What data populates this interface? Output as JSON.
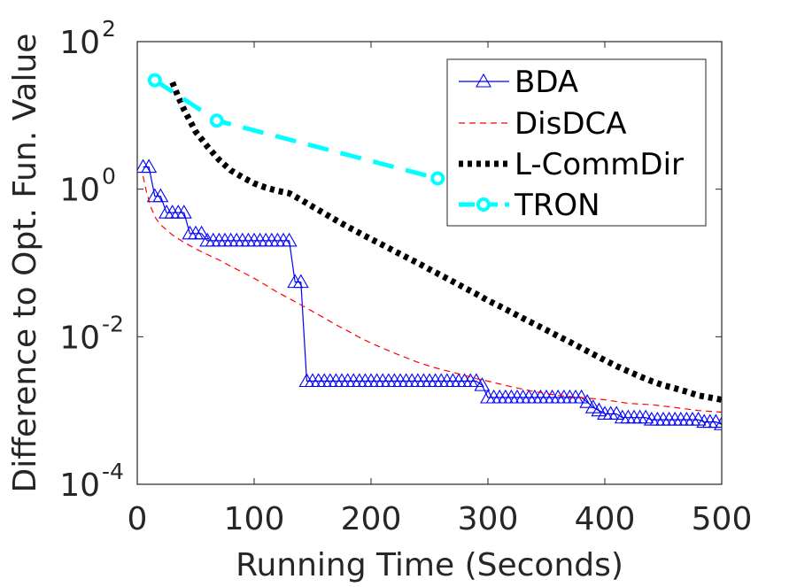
{
  "chart_data": {
    "type": "line",
    "title": "",
    "xlabel": "Running Time (Seconds)",
    "ylabel": "Difference to Opt. Fun. Value",
    "xlim": [
      0,
      500
    ],
    "ylim": [
      0.0001,
      100
    ],
    "yscale": "log",
    "x_ticks": [
      0,
      100,
      200,
      300,
      400,
      500
    ],
    "x_tick_labels": [
      "0",
      "100",
      "200",
      "300",
      "400",
      "500"
    ],
    "y_ticks": [
      {
        "value": 100,
        "base": "10",
        "exp": "2"
      },
      {
        "value": 1,
        "base": "10",
        "exp": "0"
      },
      {
        "value": 0.01,
        "base": "10",
        "exp": "-2"
      },
      {
        "value": 0.0001,
        "base": "10",
        "exp": "-4"
      }
    ],
    "legend_position": "top-right",
    "series": [
      {
        "name": "BDA",
        "color": "#0000ff",
        "style": "solid-triangle",
        "x": [
          5,
          10,
          15,
          20,
          25,
          30,
          35,
          40,
          45,
          50,
          55,
          60,
          65,
          70,
          75,
          80,
          85,
          90,
          95,
          100,
          105,
          110,
          115,
          120,
          125,
          130,
          135,
          140,
          145,
          150,
          155,
          160,
          165,
          170,
          175,
          180,
          185,
          190,
          195,
          200,
          205,
          210,
          215,
          220,
          225,
          230,
          235,
          240,
          245,
          250,
          255,
          260,
          265,
          270,
          275,
          280,
          285,
          290,
          295,
          300,
          305,
          310,
          315,
          320,
          325,
          330,
          335,
          340,
          345,
          350,
          355,
          360,
          365,
          370,
          375,
          380,
          385,
          390,
          395,
          400,
          405,
          410,
          415,
          420,
          425,
          430,
          435,
          440,
          445,
          450,
          455,
          460,
          465,
          470,
          475,
          480,
          485,
          490,
          495,
          500
        ],
        "y": [
          2.0,
          2.0,
          0.8,
          0.8,
          0.48,
          0.48,
          0.48,
          0.48,
          0.25,
          0.25,
          0.25,
          0.2,
          0.2,
          0.2,
          0.2,
          0.2,
          0.2,
          0.2,
          0.2,
          0.2,
          0.2,
          0.2,
          0.2,
          0.2,
          0.2,
          0.2,
          0.055,
          0.055,
          0.0025,
          0.0025,
          0.0025,
          0.0025,
          0.0025,
          0.0025,
          0.0025,
          0.0025,
          0.0025,
          0.0025,
          0.0025,
          0.0025,
          0.0025,
          0.0025,
          0.0025,
          0.0025,
          0.0025,
          0.0025,
          0.0025,
          0.0025,
          0.0025,
          0.0025,
          0.0025,
          0.0025,
          0.0025,
          0.0025,
          0.0025,
          0.0025,
          0.0025,
          0.0025,
          0.0022,
          0.0015,
          0.0015,
          0.0015,
          0.0015,
          0.0015,
          0.0015,
          0.0015,
          0.0015,
          0.0015,
          0.0015,
          0.0015,
          0.0015,
          0.0015,
          0.0015,
          0.0015,
          0.0015,
          0.0015,
          0.0013,
          0.0011,
          0.001,
          0.0009,
          0.0009,
          0.0009,
          0.0008,
          0.0008,
          0.0008,
          0.0008,
          0.0008,
          0.00075,
          0.00075,
          0.00075,
          0.00075,
          0.00075,
          0.00075,
          0.00075,
          0.00075,
          0.00075,
          0.0007,
          0.0007,
          0.0007,
          0.00065
        ]
      },
      {
        "name": "DisDCA",
        "color": "#ff0000",
        "style": "dashed-thin",
        "x": [
          5,
          8,
          12,
          16,
          20,
          25,
          30,
          40,
          50,
          60,
          70,
          80,
          90,
          100,
          110,
          120,
          130,
          140,
          150,
          160,
          170,
          180,
          190,
          200,
          210,
          220,
          230,
          240,
          250,
          260,
          270,
          280,
          290,
          300,
          320,
          340,
          360,
          380,
          400,
          420,
          440,
          460,
          480,
          500
        ],
        "y": [
          1.5,
          0.9,
          0.55,
          0.4,
          0.33,
          0.28,
          0.24,
          0.19,
          0.155,
          0.13,
          0.11,
          0.09,
          0.075,
          0.062,
          0.05,
          0.04,
          0.033,
          0.027,
          0.022,
          0.018,
          0.0145,
          0.012,
          0.0098,
          0.0082,
          0.007,
          0.006,
          0.0052,
          0.0045,
          0.004,
          0.0036,
          0.0033,
          0.003,
          0.0027,
          0.0025,
          0.0021,
          0.0018,
          0.0016,
          0.0015,
          0.0014,
          0.00125,
          0.0012,
          0.0011,
          0.001,
          0.00095
        ]
      },
      {
        "name": "L-CommDir",
        "color": "#000000",
        "style": "dotted-thick",
        "x": [
          30,
          35,
          40,
          45,
          50,
          60,
          70,
          80,
          90,
          100,
          110,
          120,
          130,
          140,
          150,
          160,
          170,
          180,
          190,
          200,
          210,
          220,
          230,
          240,
          250,
          260,
          270,
          280,
          290,
          300,
          310,
          320,
          330,
          340,
          350,
          360,
          370,
          380,
          390,
          400,
          410,
          420,
          430,
          440,
          450,
          460,
          470,
          480,
          490,
          500
        ],
        "y": [
          28,
          18,
          12,
          8.5,
          6,
          3.8,
          2.5,
          1.8,
          1.45,
          1.2,
          1.05,
          0.95,
          0.88,
          0.72,
          0.58,
          0.47,
          0.38,
          0.31,
          0.255,
          0.21,
          0.175,
          0.145,
          0.12,
          0.1,
          0.082,
          0.068,
          0.056,
          0.046,
          0.038,
          0.031,
          0.026,
          0.0215,
          0.0178,
          0.0148,
          0.0123,
          0.0102,
          0.0085,
          0.007,
          0.0058,
          0.0048,
          0.004,
          0.0034,
          0.0029,
          0.0025,
          0.0022,
          0.002,
          0.0018,
          0.0016,
          0.0015,
          0.0014
        ]
      },
      {
        "name": "TRON",
        "color": "#00ffff",
        "style": "dashed-circle",
        "x": [
          15,
          68,
          257
        ],
        "y": [
          30,
          8.5,
          1.4
        ]
      }
    ]
  }
}
